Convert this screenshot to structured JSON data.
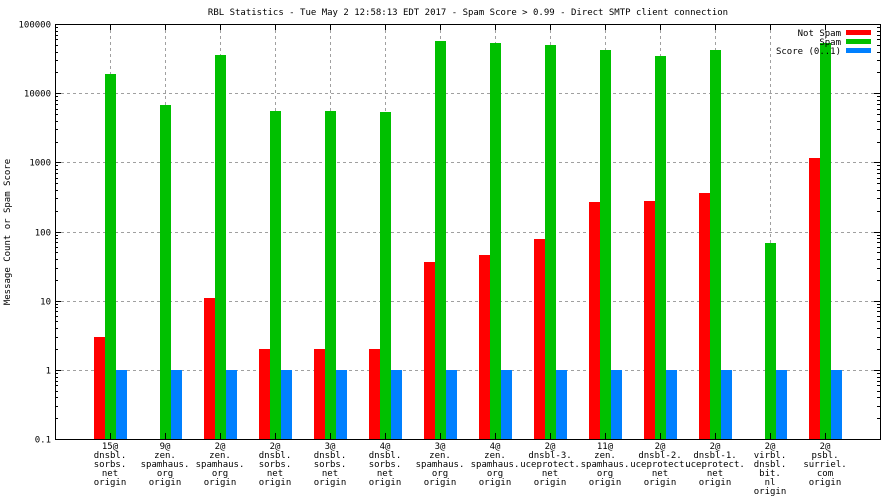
{
  "chart_data": {
    "type": "bar",
    "title": "RBL Statistics - Tue May  2 12:58:13 EDT 2017 - Spam Score > 0.99 - Direct SMTP client connection",
    "xlabel": "",
    "ylabel": "Message Count or Spam Score",
    "yscale": "log",
    "ylim": [
      0.1,
      100000
    ],
    "yticks": [
      "0.1",
      "1",
      "10",
      "100",
      "1000",
      "10000",
      "100000"
    ],
    "grid": true,
    "legend_position": "top-right",
    "categories": [
      [
        "15@",
        "dnsbl.",
        "sorbs.",
        "net",
        "origin"
      ],
      [
        "9@",
        "zen.",
        "spamhaus.",
        "org",
        "origin"
      ],
      [
        "2@",
        "zen.",
        "spamhaus.",
        "org",
        "origin"
      ],
      [
        "2@",
        "dnsbl.",
        "sorbs.",
        "net",
        "origin"
      ],
      [
        "3@",
        "dnsbl.",
        "sorbs.",
        "net",
        "origin"
      ],
      [
        "4@",
        "dnsbl.",
        "sorbs.",
        "net",
        "origin"
      ],
      [
        "3@",
        "zen.",
        "spamhaus.",
        "org",
        "origin"
      ],
      [
        "4@",
        "zen.",
        "spamhaus.",
        "org",
        "origin"
      ],
      [
        "2@",
        "dnsbl-3.",
        "uceprotect.",
        "net",
        "origin"
      ],
      [
        "11@",
        "zen.",
        "spamhaus.",
        "org",
        "origin"
      ],
      [
        "2@",
        "dnsbl-2.",
        "uceprotect.",
        "net",
        "origin"
      ],
      [
        "2@",
        "dnsbl-1.",
        "uceprotect.",
        "net",
        "origin"
      ],
      [
        "2@",
        "virbl.",
        "dnsbl.",
        "bit.",
        "nl",
        "origin"
      ],
      [
        "2@",
        "psbl.",
        "surriel.",
        "com",
        "origin"
      ]
    ],
    "series": [
      {
        "name": "Not Spam",
        "color": "#ff0000",
        "values": [
          3,
          0,
          11,
          2,
          2,
          2,
          36,
          46,
          78,
          270,
          280,
          365,
          0,
          1150
        ]
      },
      {
        "name": "Spam",
        "color": "#00c000",
        "values": [
          18800,
          6700,
          35500,
          5500,
          5500,
          5300,
          56500,
          54000,
          49000,
          42000,
          34500,
          42000,
          69,
          53000
        ]
      },
      {
        "name": "Score (0..1)",
        "color": "#0080ff",
        "values": [
          1,
          1,
          1,
          1,
          1,
          1,
          1,
          1,
          1,
          1,
          1,
          1,
          1,
          1
        ]
      }
    ]
  }
}
